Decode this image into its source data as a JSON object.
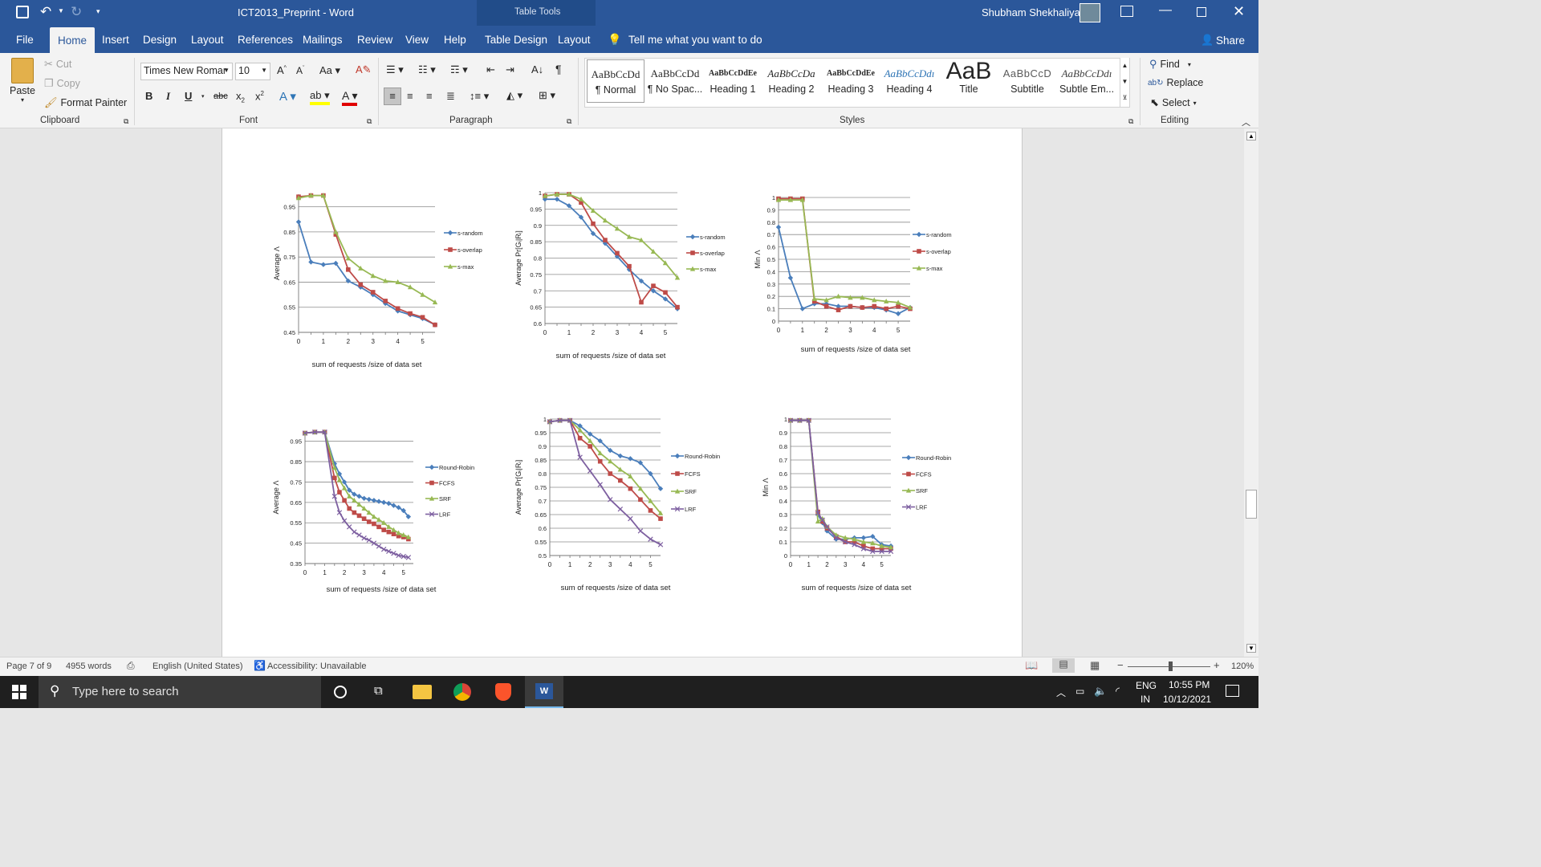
{
  "titlebar": {
    "doc_title": "ICT2013_Preprint  -  Word",
    "context_group": "Table Tools",
    "user": "Shubham Shekhaliya"
  },
  "tabs": [
    "File",
    "Home",
    "Insert",
    "Design",
    "Layout",
    "References",
    "Mailings",
    "Review",
    "View",
    "Help",
    "Table Design",
    "Layout"
  ],
  "tell_me": "Tell me what you want to do",
  "share": "Share",
  "clipboard": {
    "paste": "Paste",
    "cut": "Cut",
    "copy": "Copy",
    "format_painter": "Format Painter",
    "label": "Clipboard"
  },
  "font": {
    "name": "Times New Romar",
    "size": "10",
    "label": "Font"
  },
  "paragraph": {
    "label": "Paragraph"
  },
  "styles": {
    "label": "Styles",
    "items": [
      {
        "preview": "AaBbCcDd",
        "name": "¶ Normal"
      },
      {
        "preview": "AaBbCcDd",
        "name": "¶ No Spac..."
      },
      {
        "preview": "AaBbCcDdEe",
        "name": "Heading 1"
      },
      {
        "preview": "AaBbCcDa",
        "name": "Heading 2"
      },
      {
        "preview": "AaBbCcDdEe",
        "name": "Heading 3"
      },
      {
        "preview": "AaBbCcDdı",
        "name": "Heading 4"
      },
      {
        "preview": "AaB",
        "name": "Title"
      },
      {
        "preview": "AaBbCcD",
        "name": "Subtitle"
      },
      {
        "preview": "AaBbCcDdı",
        "name": "Subtle Em..."
      }
    ]
  },
  "editing": {
    "find": "Find",
    "replace": "Replace",
    "select": "Select",
    "label": "Editing"
  },
  "colors": {
    "blue": "#4a7ebb",
    "red": "#be4b48",
    "green": "#98b954",
    "purple": "#7d5fa0",
    "ribbon": "#2b579a"
  },
  "chart_data": [
    {
      "type": "line",
      "ylabel": "Average Λ",
      "xlabel": "sum of requests /size of data set",
      "ylim": [
        0.45,
        1.0
      ],
      "yticks": [
        "0.45",
        "0.55",
        "0.65",
        "0.75",
        "0.85",
        "0.95"
      ],
      "ytickvals": [
        0.45,
        0.55,
        0.65,
        0.75,
        0.85,
        0.95
      ],
      "xticks": [
        "0",
        "1",
        "2",
        "3",
        "4",
        "5"
      ],
      "xlim": [
        0,
        5.5
      ],
      "x": [
        0,
        0.5,
        1,
        1.5,
        2,
        2.5,
        3,
        3.5,
        4,
        4.5,
        5,
        5.5
      ],
      "series": [
        {
          "name": "s-random",
          "color": "blue",
          "values": [
            0.89,
            0.73,
            0.72,
            0.725,
            0.655,
            0.63,
            0.6,
            0.565,
            0.535,
            0.52,
            0.505,
            0.48
          ]
        },
        {
          "name": "s-overlap",
          "color": "red",
          "values": [
            0.99,
            0.995,
            0.995,
            0.84,
            0.7,
            0.64,
            0.61,
            0.575,
            0.545,
            0.525,
            0.51,
            0.48
          ]
        },
        {
          "name": "s-max",
          "color": "green",
          "values": [
            0.985,
            0.995,
            0.995,
            0.85,
            0.745,
            0.705,
            0.675,
            0.655,
            0.65,
            0.63,
            0.6,
            0.57
          ]
        }
      ]
    },
    {
      "type": "line",
      "ylabel": "Average Pr[Gᵢ|Rᵢ]",
      "xlabel": "sum of requests /size of data set",
      "ylim": [
        0.6,
        1.0
      ],
      "yticks": [
        "0.6",
        "0.65",
        "0.7",
        "0.75",
        "0.8",
        "0.85",
        "0.9",
        "0.95",
        "1"
      ],
      "ytickvals": [
        0.6,
        0.65,
        0.7,
        0.75,
        0.8,
        0.85,
        0.9,
        0.95,
        1
      ],
      "xticks": [
        "0",
        "1",
        "2",
        "3",
        "4",
        "5"
      ],
      "xlim": [
        0,
        5.5
      ],
      "x": [
        0,
        0.5,
        1,
        1.5,
        2,
        2.5,
        3,
        3.5,
        4,
        4.5,
        5,
        5.5
      ],
      "series": [
        {
          "name": "s-random",
          "color": "blue",
          "values": [
            0.98,
            0.98,
            0.96,
            0.925,
            0.875,
            0.845,
            0.805,
            0.765,
            0.73,
            0.7,
            0.675,
            0.645
          ]
        },
        {
          "name": "s-overlap",
          "color": "red",
          "values": [
            0.99,
            0.995,
            0.995,
            0.97,
            0.905,
            0.855,
            0.815,
            0.775,
            0.665,
            0.715,
            0.695,
            0.65
          ]
        },
        {
          "name": "s-max",
          "color": "green",
          "values": [
            0.99,
            0.995,
            0.995,
            0.98,
            0.945,
            0.915,
            0.89,
            0.865,
            0.855,
            0.82,
            0.785,
            0.74
          ]
        }
      ]
    },
    {
      "type": "line",
      "ylabel": "Min Λ",
      "xlabel": "sum of requests /size of data set",
      "ylim": [
        0,
        1.0
      ],
      "yticks": [
        "0",
        "0.1",
        "0.2",
        "0.3",
        "0.4",
        "0.5",
        "0.6",
        "0.7",
        "0.8",
        "0.9",
        "1"
      ],
      "ytickvals": [
        0,
        0.1,
        0.2,
        0.3,
        0.4,
        0.5,
        0.6,
        0.7,
        0.8,
        0.9,
        1
      ],
      "xticks": [
        "0",
        "1",
        "2",
        "3",
        "4",
        "5"
      ],
      "xlim": [
        0,
        5.5
      ],
      "x": [
        0,
        0.5,
        1,
        1.5,
        2,
        2.5,
        3,
        3.5,
        4,
        4.5,
        5,
        5.5
      ],
      "series": [
        {
          "name": "s-random",
          "color": "blue",
          "values": [
            0.76,
            0.35,
            0.1,
            0.14,
            0.14,
            0.12,
            0.12,
            0.11,
            0.11,
            0.09,
            0.06,
            0.11
          ]
        },
        {
          "name": "s-overlap",
          "color": "red",
          "values": [
            0.99,
            0.99,
            0.99,
            0.16,
            0.12,
            0.09,
            0.12,
            0.11,
            0.12,
            0.1,
            0.12,
            0.1
          ]
        },
        {
          "name": "s-max",
          "color": "green",
          "values": [
            0.98,
            0.98,
            0.98,
            0.18,
            0.17,
            0.2,
            0.19,
            0.19,
            0.17,
            0.16,
            0.15,
            0.11
          ]
        }
      ]
    },
    {
      "type": "line",
      "ylabel": "Average Λ",
      "xlabel": "sum of requests /size of data set",
      "ylim": [
        0.35,
        1.0
      ],
      "yticks": [
        "0.35",
        "0.45",
        "0.55",
        "0.65",
        "0.75",
        "0.85",
        "0.95"
      ],
      "ytickvals": [
        0.35,
        0.45,
        0.55,
        0.65,
        0.75,
        0.85,
        0.95
      ],
      "xticks": [
        "0",
        "1",
        "2",
        "3",
        "4",
        "5"
      ],
      "xlim": [
        0,
        5.5
      ],
      "x": [
        0,
        0.5,
        1,
        1.5,
        1.75,
        2,
        2.25,
        2.5,
        2.75,
        3,
        3.25,
        3.5,
        3.75,
        4,
        4.25,
        4.5,
        4.75,
        5,
        5.25
      ],
      "series": [
        {
          "name": "Round-Robin",
          "color": "blue",
          "values": [
            0.99,
            0.995,
            0.995,
            0.84,
            0.79,
            0.75,
            0.71,
            0.69,
            0.68,
            0.67,
            0.665,
            0.66,
            0.655,
            0.65,
            0.645,
            0.635,
            0.625,
            0.61,
            0.58
          ]
        },
        {
          "name": "FCFS",
          "color": "red",
          "values": [
            0.99,
            0.995,
            0.995,
            0.77,
            0.7,
            0.66,
            0.62,
            0.6,
            0.585,
            0.57,
            0.555,
            0.545,
            0.53,
            0.515,
            0.505,
            0.495,
            0.485,
            0.48,
            0.47
          ]
        },
        {
          "name": "SRF",
          "color": "green",
          "values": [
            0.99,
            0.995,
            0.995,
            0.82,
            0.76,
            0.72,
            0.68,
            0.66,
            0.64,
            0.62,
            0.6,
            0.58,
            0.565,
            0.55,
            0.53,
            0.515,
            0.5,
            0.49,
            0.48
          ]
        },
        {
          "name": "LRF",
          "color": "purple",
          "values": [
            0.99,
            0.995,
            0.995,
            0.68,
            0.6,
            0.56,
            0.53,
            0.505,
            0.49,
            0.475,
            0.465,
            0.45,
            0.435,
            0.42,
            0.41,
            0.4,
            0.39,
            0.385,
            0.38
          ]
        }
      ]
    },
    {
      "type": "line",
      "ylabel": "Average Pr[Gᵢ|Rᵢ]",
      "xlabel": "sum of requests /size of data set",
      "ylim": [
        0.5,
        1.0
      ],
      "yticks": [
        "0.5",
        "0.55",
        "0.6",
        "0.65",
        "0.7",
        "0.75",
        "0.8",
        "0.85",
        "0.9",
        "0.95",
        "1"
      ],
      "ytickvals": [
        0.5,
        0.55,
        0.6,
        0.65,
        0.7,
        0.75,
        0.8,
        0.85,
        0.9,
        0.95,
        1
      ],
      "xticks": [
        "0",
        "1",
        "2",
        "3",
        "4",
        "5"
      ],
      "xlim": [
        0,
        5.5
      ],
      "x": [
        0,
        0.5,
        1,
        1.5,
        2,
        2.5,
        3,
        3.5,
        4,
        4.5,
        5,
        5.5
      ],
      "series": [
        {
          "name": "Round-Robin",
          "color": "blue",
          "values": [
            0.99,
            0.995,
            0.995,
            0.975,
            0.945,
            0.92,
            0.885,
            0.865,
            0.855,
            0.84,
            0.8,
            0.745
          ]
        },
        {
          "name": "FCFS",
          "color": "red",
          "values": [
            0.99,
            0.995,
            0.995,
            0.93,
            0.9,
            0.845,
            0.8,
            0.775,
            0.745,
            0.705,
            0.665,
            0.635
          ]
        },
        {
          "name": "SRF",
          "color": "green",
          "values": [
            0.99,
            0.995,
            0.995,
            0.96,
            0.92,
            0.875,
            0.845,
            0.815,
            0.79,
            0.745,
            0.7,
            0.655
          ]
        },
        {
          "name": "LRF",
          "color": "purple",
          "values": [
            0.99,
            0.995,
            0.995,
            0.86,
            0.81,
            0.76,
            0.705,
            0.67,
            0.635,
            0.59,
            0.56,
            0.54
          ]
        }
      ]
    },
    {
      "type": "line",
      "ylabel": "Min Λ",
      "xlabel": "sum of requests /size of data set",
      "ylim": [
        0,
        1.0
      ],
      "yticks": [
        "0",
        "0.1",
        "0.2",
        "0.3",
        "0.4",
        "0.5",
        "0.6",
        "0.7",
        "0.8",
        "0.9",
        "1"
      ],
      "ytickvals": [
        0,
        0.1,
        0.2,
        0.3,
        0.4,
        0.5,
        0.6,
        0.7,
        0.8,
        0.9,
        1
      ],
      "xticks": [
        "0",
        "1",
        "2",
        "3",
        "4",
        "5"
      ],
      "xlim": [
        0,
        5.5
      ],
      "x": [
        0,
        0.5,
        1,
        1.5,
        1.75,
        2,
        2.5,
        3,
        3.5,
        4,
        4.5,
        5,
        5.5
      ],
      "series": [
        {
          "name": "Round-Robin",
          "color": "blue",
          "values": [
            0.99,
            0.99,
            0.99,
            0.3,
            0.24,
            0.18,
            0.12,
            0.12,
            0.13,
            0.13,
            0.14,
            0.08,
            0.07
          ]
        },
        {
          "name": "FCFS",
          "color": "red",
          "values": [
            0.99,
            0.99,
            0.99,
            0.32,
            0.25,
            0.2,
            0.14,
            0.1,
            0.1,
            0.07,
            0.05,
            0.05,
            0.05
          ]
        },
        {
          "name": "SRF",
          "color": "green",
          "values": [
            0.99,
            0.99,
            0.99,
            0.25,
            0.27,
            0.21,
            0.15,
            0.13,
            0.12,
            0.1,
            0.09,
            0.07,
            0.06
          ]
        },
        {
          "name": "LRF",
          "color": "purple",
          "values": [
            0.99,
            0.99,
            0.99,
            0.31,
            0.26,
            0.21,
            0.13,
            0.1,
            0.08,
            0.05,
            0.03,
            0.03,
            0.03
          ]
        }
      ]
    }
  ],
  "status": {
    "page": "Page 7 of 9",
    "words": "4955 words",
    "language": "English (United States)",
    "accessibility": "Accessibility: Unavailable",
    "zoom": "120%"
  },
  "taskbar": {
    "search": "Type here to search",
    "lang1": "ENG",
    "lang2": "IN",
    "time": "10:55 PM",
    "date": "10/12/2021"
  }
}
